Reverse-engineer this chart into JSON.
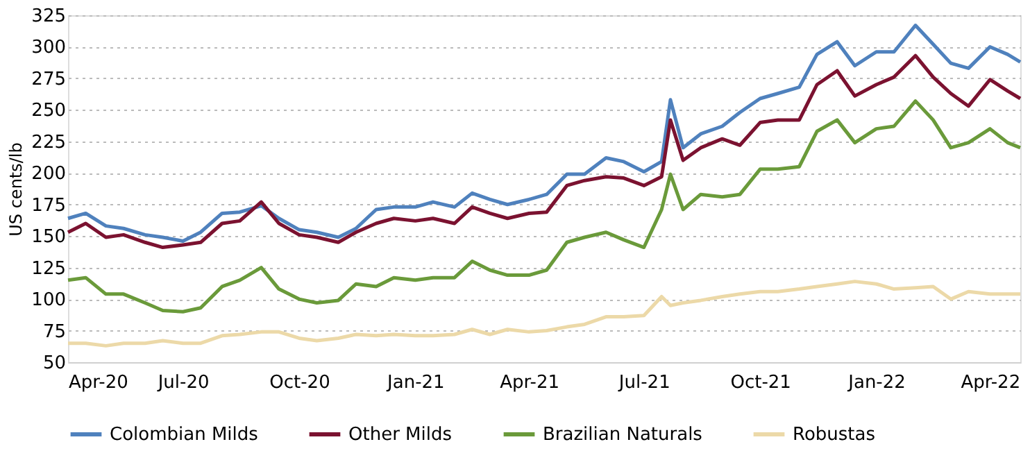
{
  "chart_data": {
    "type": "line",
    "ylabel": "US cents/lb",
    "x": [
      "2020-04-01",
      "2020-04-15",
      "2020-05-01",
      "2020-05-15",
      "2020-06-01",
      "2020-06-15",
      "2020-07-01",
      "2020-07-15",
      "2020-08-01",
      "2020-08-15",
      "2020-09-01",
      "2020-09-15",
      "2020-10-01",
      "2020-10-15",
      "2020-11-01",
      "2020-11-15",
      "2020-12-01",
      "2020-12-15",
      "2021-01-01",
      "2021-01-15",
      "2021-02-01",
      "2021-02-15",
      "2021-03-01",
      "2021-03-15",
      "2021-04-01",
      "2021-04-15",
      "2021-05-01",
      "2021-05-15",
      "2021-06-01",
      "2021-06-15",
      "2021-07-01",
      "2021-07-15",
      "2021-07-22",
      "2021-08-01",
      "2021-08-15",
      "2021-09-01",
      "2021-09-15",
      "2021-10-01",
      "2021-10-15",
      "2021-11-01",
      "2021-11-15",
      "2021-12-01",
      "2021-12-15",
      "2022-01-01",
      "2022-01-15",
      "2022-02-01",
      "2022-02-15",
      "2022-03-01",
      "2022-03-15",
      "2022-04-01",
      "2022-04-15",
      "2022-04-25"
    ],
    "series": [
      {
        "name": "Colombian Milds",
        "color": "#4f81bd",
        "values": [
          164,
          168,
          158,
          156,
          151,
          149,
          146,
          153,
          168,
          169,
          174,
          164,
          155,
          153,
          149,
          156,
          171,
          173,
          173,
          177,
          173,
          184,
          179,
          175,
          179,
          183,
          199,
          199,
          212,
          209,
          201,
          209,
          258,
          220,
          231,
          237,
          248,
          259,
          263,
          268,
          294,
          304,
          285,
          296,
          296,
          317,
          302,
          287,
          283,
          300,
          294,
          288
        ]
      },
      {
        "name": "Other Milds",
        "color": "#7b1230",
        "values": [
          153,
          160,
          149,
          151,
          145,
          141,
          143,
          145,
          160,
          162,
          177,
          160,
          151,
          149,
          145,
          153,
          160,
          164,
          162,
          164,
          160,
          173,
          168,
          164,
          168,
          169,
          190,
          194,
          197,
          196,
          190,
          197,
          242,
          210,
          220,
          227,
          222,
          240,
          242,
          242,
          270,
          281,
          261,
          270,
          276,
          293,
          276,
          263,
          253,
          274,
          265,
          259
        ]
      },
      {
        "name": "Brazilian Naturals",
        "color": "#6a9a3a",
        "values": [
          115,
          117,
          104,
          104,
          97,
          91,
          90,
          93,
          110,
          115,
          125,
          108,
          100,
          97,
          99,
          112,
          110,
          117,
          115,
          117,
          117,
          130,
          123,
          119,
          119,
          123,
          145,
          149,
          153,
          147,
          141,
          171,
          199,
          171,
          183,
          181,
          183,
          203,
          203,
          205,
          233,
          242,
          224,
          235,
          237,
          257,
          242,
          220,
          224,
          235,
          224,
          220
        ]
      },
      {
        "name": "Robustas",
        "color": "#ecd9a8",
        "values": [
          65,
          65,
          63,
          65,
          65,
          67,
          65,
          65,
          71,
          72,
          74,
          74,
          69,
          67,
          69,
          72,
          71,
          72,
          71,
          71,
          72,
          76,
          72,
          76,
          74,
          75,
          78,
          80,
          86,
          86,
          87,
          102,
          95,
          97,
          99,
          102,
          104,
          106,
          106,
          108,
          110,
          112,
          114,
          112,
          108,
          109,
          110,
          100,
          106,
          104,
          104,
          104
        ]
      }
    ],
    "xlim": [
      "2020-04-01",
      "2022-04-25"
    ],
    "xticks": [
      {
        "value": "2020-04-01",
        "label": "Apr-20"
      },
      {
        "value": "2020-07-01",
        "label": "Jul-20"
      },
      {
        "value": "2020-10-01",
        "label": "Oct-20"
      },
      {
        "value": "2021-01-01",
        "label": "Jan-21"
      },
      {
        "value": "2021-04-01",
        "label": "Apr-21"
      },
      {
        "value": "2021-07-01",
        "label": "Jul-21"
      },
      {
        "value": "2021-10-01",
        "label": "Oct-21"
      },
      {
        "value": "2022-01-01",
        "label": "Jan-22"
      },
      {
        "value": "2022-04-01",
        "label": "Apr-22"
      }
    ],
    "ylim": [
      50,
      325
    ],
    "yticks": [
      50,
      75,
      100,
      125,
      150,
      175,
      200,
      225,
      250,
      275,
      300,
      325
    ],
    "grid": "y",
    "legend": "bottom",
    "marker": "none",
    "line_style": "solid"
  }
}
